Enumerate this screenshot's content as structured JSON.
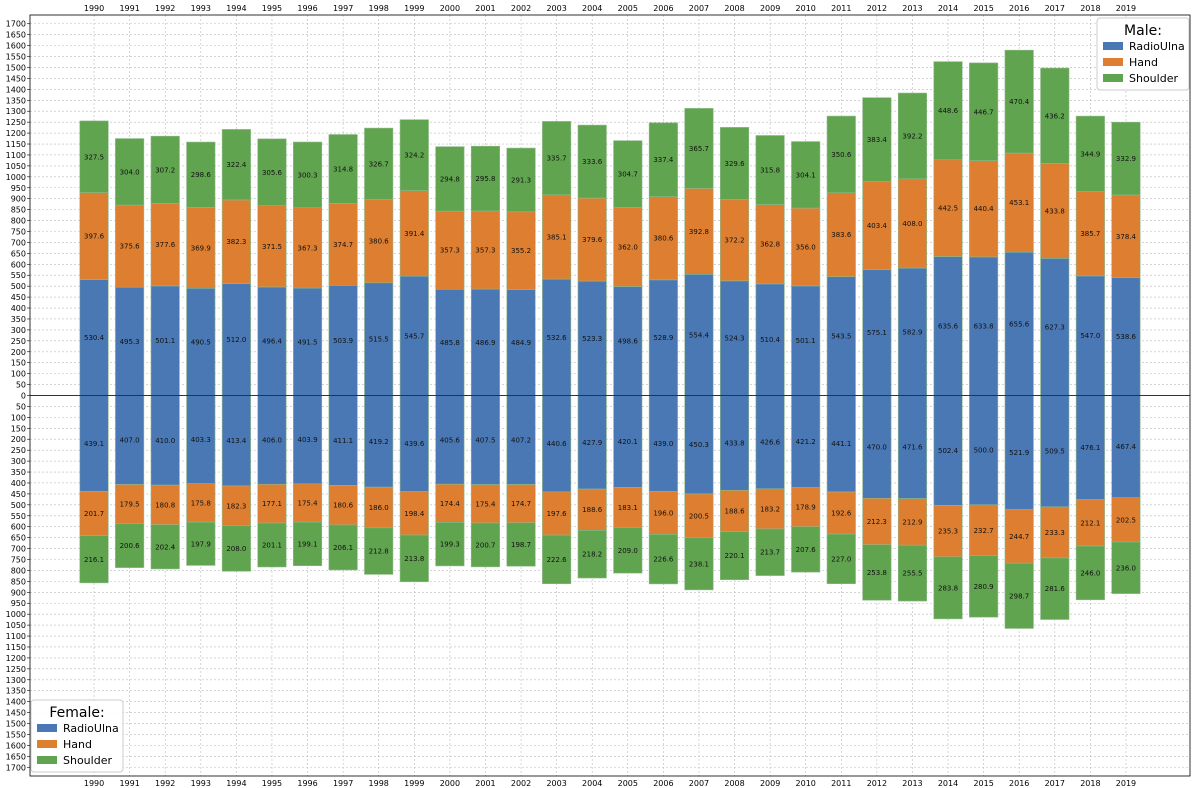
{
  "chart_data": {
    "type": "bar",
    "stacked": true,
    "diverging": true,
    "categories": [
      "1990",
      "1991",
      "1992",
      "1993",
      "1994",
      "1995",
      "1996",
      "1997",
      "1998",
      "1999",
      "2000",
      "2001",
      "2002",
      "2003",
      "2004",
      "2005",
      "2006",
      "2007",
      "2008",
      "2009",
      "2010",
      "2011",
      "2012",
      "2013",
      "2014",
      "2015",
      "2016",
      "2017",
      "2018",
      "2019"
    ],
    "ylim": [
      -1700,
      1700
    ],
    "ytick_step": 50,
    "grid": true,
    "colors": {
      "RadioUlna": "#4a78b4",
      "Hand": "#dd7e30",
      "Shoulder": "#60a450"
    },
    "male": {
      "legend_title": "Male:",
      "legend_placement": "top-right",
      "series": [
        {
          "name": "RadioUlna",
          "values": [
            530.4,
            495.3,
            501.1,
            490.5,
            512.0,
            496.4,
            491.5,
            503.9,
            515.5,
            545.7,
            485.8,
            486.9,
            484.9,
            532.6,
            523.3,
            498.6,
            528.9,
            554.4,
            524.3,
            510.4,
            501.1,
            543.5,
            575.1,
            582.9,
            635.6,
            633.8,
            655.6,
            627.3,
            547.0,
            538.6
          ]
        },
        {
          "name": "Hand",
          "values": [
            397.6,
            375.6,
            377.6,
            369.9,
            382.3,
            371.5,
            367.3,
            374.7,
            380.6,
            391.4,
            357.3,
            357.3,
            355.2,
            385.1,
            379.6,
            362.0,
            380.6,
            392.8,
            372.2,
            362.8,
            356.0,
            383.6,
            403.4,
            408.0,
            442.5,
            440.4,
            453.1,
            433.8,
            385.7,
            378.4
          ]
        },
        {
          "name": "Shoulder",
          "values": [
            327.5,
            304.0,
            307.2,
            298.6,
            322.4,
            305.6,
            300.3,
            314.8,
            326.7,
            324.2,
            294.8,
            295.8,
            291.3,
            335.7,
            333.6,
            304.7,
            337.4,
            365.7,
            329.6,
            315.8,
            304.1,
            350.6,
            383.4,
            392.2,
            448.6,
            446.7,
            470.4,
            436.2,
            344.9,
            332.9
          ]
        }
      ]
    },
    "female": {
      "legend_title": "Female:",
      "legend_placement": "bottom-left",
      "series": [
        {
          "name": "RadioUlna",
          "values": [
            439.1,
            407.0,
            410.0,
            403.3,
            413.4,
            406.0,
            403.9,
            411.1,
            419.2,
            439.6,
            405.6,
            407.5,
            407.2,
            440.6,
            427.9,
            420.1,
            439.0,
            450.3,
            433.8,
            426.6,
            421.2,
            441.1,
            470.0,
            471.6,
            502.4,
            500.0,
            521.9,
            509.5,
            476.1,
            467.4
          ]
        },
        {
          "name": "Hand",
          "values": [
            201.7,
            179.5,
            180.8,
            175.8,
            182.3,
            177.1,
            175.4,
            180.6,
            186.0,
            198.4,
            174.4,
            175.4,
            174.7,
            197.6,
            188.6,
            183.1,
            196.0,
            200.5,
            188.6,
            183.2,
            178.9,
            192.6,
            212.3,
            212.9,
            235.3,
            232.7,
            244.7,
            233.3,
            212.1,
            202.5
          ]
        },
        {
          "name": "Shoulder",
          "values": [
            216.1,
            200.6,
            202.4,
            197.9,
            208.0,
            201.1,
            199.1,
            206.1,
            212.8,
            213.8,
            199.3,
            200.7,
            198.7,
            222.6,
            218.2,
            209.0,
            226.6,
            238.1,
            220.1,
            213.7,
            207.6,
            227.0,
            253.8,
            255.5,
            283.8,
            280.9,
            298.7,
            281.6,
            246.0,
            236.0
          ]
        }
      ]
    }
  }
}
